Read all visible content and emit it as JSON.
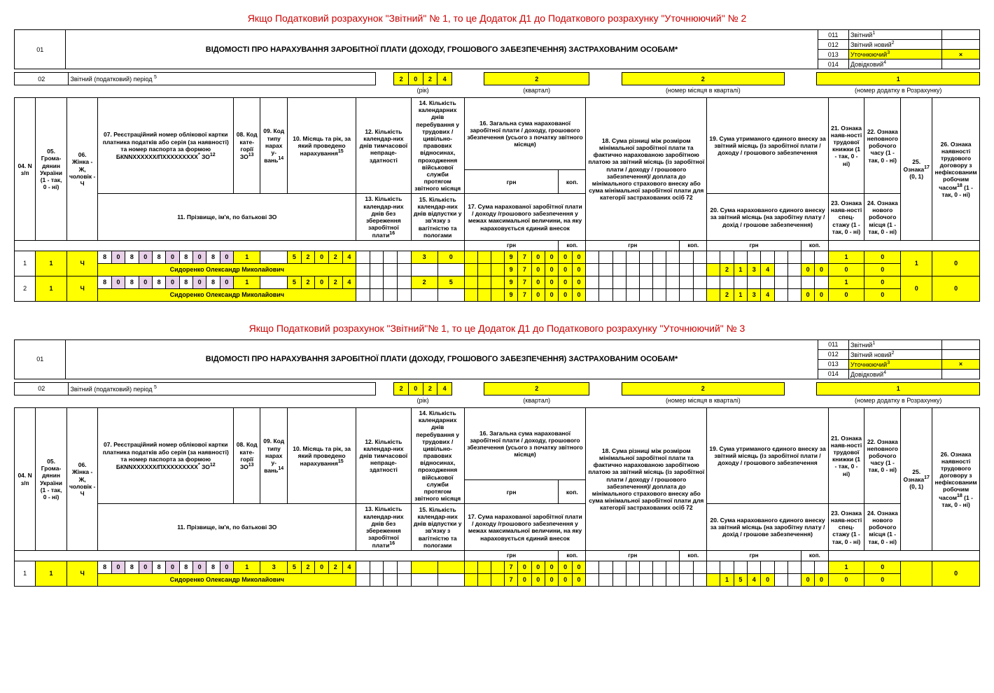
{
  "forms": [
    {
      "red_title": "Якщо Податковий розрахунок \"Звітний\" № 1, то це Додаток Д1 до Податкового розрахунку \"Уточнюючий\" № 2",
      "types": [
        {
          "code": "011",
          "label": "Звітний",
          "sup": "1",
          "hl": false,
          "mark": ""
        },
        {
          "code": "012",
          "label": "Звітний новий",
          "sup": "2",
          "hl": false,
          "mark": ""
        },
        {
          "code": "013",
          "label": "Уточнюючий",
          "sup": "3",
          "hl": true,
          "mark": "×"
        },
        {
          "code": "014",
          "label": "Довідковий",
          "sup": "4",
          "hl": false,
          "mark": ""
        }
      ],
      "period": {
        "year": [
          "2",
          "0",
          "2",
          "4"
        ],
        "quarter": "2",
        "month": "2",
        "appendix": "1"
      },
      "rows": [
        {
          "n": "1",
          "c5": "1",
          "c6": "Ч",
          "tin": [
            "8",
            "0",
            "8",
            "0",
            "8",
            "0",
            "8",
            "0",
            "8",
            "0"
          ],
          "cat": "1",
          "type": "",
          "mr": [
            "5",
            "2",
            "0",
            "2",
            "4"
          ],
          "c12": "",
          "c14a": "3",
          "c14b": "0",
          "c16g": [
            "",
            "",
            "",
            "9",
            "7",
            "0",
            "0"
          ],
          "c16k": [
            "0",
            "0"
          ],
          "c18g": [],
          "c19g": [],
          "c21": "1",
          "c22": "0",
          "c25": "1",
          "c26": "0",
          "name": "Сидоренко Олександр Миколайович",
          "c13": "",
          "c15": "",
          "c17g": [
            "",
            "",
            "",
            "9",
            "7",
            "0",
            "0"
          ],
          "c17k": [
            "0",
            "0"
          ],
          "c20g": [
            "",
            "2",
            "1",
            "3",
            "4"
          ],
          "c20k": [
            "0",
            "0"
          ],
          "c23": "0",
          "c24": "0"
        },
        {
          "n": "2",
          "c5": "1",
          "c6": "Ч",
          "tin": [
            "8",
            "0",
            "8",
            "0",
            "8",
            "0",
            "8",
            "0",
            "8",
            "0"
          ],
          "cat": "1",
          "type": "",
          "mr": [
            "5",
            "2",
            "0",
            "2",
            "4"
          ],
          "c12": "",
          "c14a": "2",
          "c14b": "5",
          "c16g": [
            "",
            "",
            "",
            "9",
            "7",
            "0",
            "0"
          ],
          "c16k": [
            "0",
            "0"
          ],
          "c18g": [],
          "c19g": [],
          "c21": "1",
          "c22": "0",
          "c25": "0",
          "c26": "0",
          "name": "Сидоренко Олександр Миколайович",
          "c13": "",
          "c15": "",
          "c17g": [
            "",
            "",
            "",
            "9",
            "7",
            "0",
            "0"
          ],
          "c17k": [
            "0",
            "0"
          ],
          "c20g": [
            "",
            "2",
            "1",
            "3",
            "4"
          ],
          "c20k": [
            "0",
            "0"
          ],
          "c23": "0",
          "c24": "0"
        }
      ]
    },
    {
      "red_title": "Якщо Податковий розрахунок \"Звітний\"№ 1, то це Додаток Д1 до Податкового розрахунку \"Уточнюючий\" № 3",
      "types": [
        {
          "code": "011",
          "label": "Звітний",
          "sup": "1",
          "hl": false,
          "mark": ""
        },
        {
          "code": "012",
          "label": "Звітний новий",
          "sup": "2",
          "hl": false,
          "mark": ""
        },
        {
          "code": "013",
          "label": "Уточнюючий",
          "sup": "3",
          "hl": true,
          "mark": "×"
        },
        {
          "code": "014",
          "label": "Довідковий",
          "sup": "4",
          "hl": false,
          "mark": ""
        }
      ],
      "period": {
        "year": [
          "2",
          "0",
          "2",
          "4"
        ],
        "quarter": "2",
        "month": "2",
        "appendix": "1"
      },
      "rows": [
        {
          "n": "1",
          "c5": "1",
          "c6": "Ч",
          "tin": [
            "8",
            "0",
            "8",
            "0",
            "8",
            "0",
            "8",
            "0",
            "8",
            "0"
          ],
          "cat": "1",
          "type": "3",
          "mr": [
            "5",
            "2",
            "0",
            "2",
            "4"
          ],
          "c12": "",
          "c14a": "",
          "c14b": "",
          "c16g": [
            "",
            "",
            "",
            "7",
            "0",
            "0",
            "0"
          ],
          "c16k": [
            "0",
            "0"
          ],
          "c18g": [],
          "c19g": [],
          "c21": "1",
          "c22": "0",
          "c25": "",
          "c26": "0",
          "name": "Сидоренко Олександр Миколайович",
          "c13": "",
          "c15": "",
          "c17g": [
            "",
            "",
            "",
            "7",
            "0",
            "0",
            "0"
          ],
          "c17k": [
            "0",
            "0"
          ],
          "c20g": [
            "",
            "1",
            "5",
            "4",
            "0"
          ],
          "c20k": [
            "0",
            "0"
          ],
          "c23": "0",
          "c24": "0"
        }
      ]
    }
  ],
  "main_title": "ВІДОМОСТІ ПРО НАРАХУВАННЯ ЗАРОБІТНОЇ ПЛАТИ (ДОХОДУ, ГРОШОВОГО ЗАБЕЗПЕЧЕННЯ) ЗАСТРАХОВАНИМ ОСОБАМ*",
  "labels": {
    "c01": "01",
    "c02": "02",
    "period": "Звітний (податковий) період",
    "sup5": "5",
    "year": "(рік)",
    "quarter": "(квартал)",
    "month": "(номер місяця в кварталі)",
    "appendix": "(номер додатку в Розрахунку)",
    "c04": "04. N з/п",
    "c05": "05. Грома-дянин України (1 - так, 0 - ні)",
    "c06": "06. Жінка - Ж, чоловік - Ч",
    "c07": "07. Реєстраційний номер облікової картки платника податків або серія (за наявності) та номер паспорта за формою БКNNXXXXXX/ПXXXXXXXXX",
    "sup07": "*",
    "c07b": "ЗО",
    "sup12": "12",
    "c08": "08. Код кате-горії ЗО",
    "sup13": "13",
    "c09": "09. Код типу нарах у-вань",
    "sup14": "14",
    "c10": "10. Місяць та рік, за який проведено нарахування",
    "sup15": "15",
    "c11": "11. Прізвище, ім'я, по батькові ЗО",
    "c12": "12. Кількість календар-них днів тимчасової непраце-здатності",
    "c13": "13. Кількість календар-них днів без збереження заробітної плати",
    "sup16": "16",
    "c14": "14. Кількість календарних днів перебування у трудових / цивільно-правових відносинах, проходження військової служби протягом звітного місяця",
    "c15": "15. Кількість календар-них днів відпустки у зв'язку з вагітністю та пологами",
    "c16": "16. Загальна сума нарахованої заробітної плати / доходу, грошового збезпечення (усього з початку звітного місяця)",
    "c17": "17. Сума нарахованої заробітної плати / доходу /грошового забезпечення у межах максимальної величини, на яку нараховується єдиний внесок",
    "c18": "18. Сума різниці між розміром мінімальної заробітної плати та фактично нарахованою заробітною платою за звітний місяць (із заробітної плати / доходу / грошового забезпечення)/ доплата до мінімального страхового внеску або сума мінімальної заробітної плати для категорії застрахованих осіб 72",
    "c19": "19. Сума утриманого єдиного внеску за звітний місяць (із заробітної плати / доходу / грошового забезпечення",
    "c20": "20. Сума нарахованого єдиного внеску за звітний місяць (на заробітну плату / дохід / грошове забезпечення)",
    "c21": "21. Ознака наяв-ності трудової книжки (1 - так, 0 - ні)",
    "c22": "22. Ознака неповного робочого часу (1 - так, 0 - ні)",
    "c23": "23. Ознака наяв-ності спец-стажу (1 - так, 0 - ні)",
    "c24": "24. Ознака нового робочого місця (1 - так, 0 - ні)",
    "c25": "25. Ознака",
    "sup17": "17",
    "c25b": "(0, 1)",
    "c26": "26. Ознака наявності трудового договору з нефіксованим робочим часом",
    "sup18": "18",
    "c26b": "(1 - так, 0 - ні)",
    "grn": "грн",
    "kop": "коп."
  },
  "colors": {
    "highlight": "#ffff00",
    "red": "#c00000",
    "border": "#000000",
    "tin_alt": "#e8d0e8"
  }
}
